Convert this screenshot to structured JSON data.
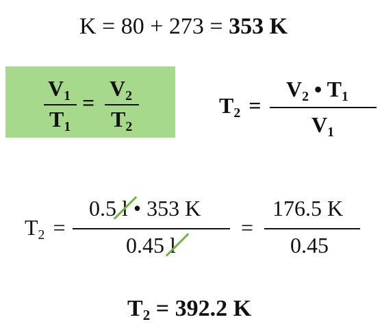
{
  "line1": {
    "left": "K = 80 + 273 = ",
    "result": "353 K"
  },
  "boxed_law": {
    "box_color": "#a7d98c",
    "num_var": "V",
    "num_sub": "1",
    "den_var": "T",
    "den_sub": "1",
    "equals": "=",
    "num2_var": "V",
    "num2_sub": "2",
    "den2_var": "T",
    "den2_sub": "2"
  },
  "solved": {
    "lhs_var": "T",
    "lhs_sub": "2",
    "equals": "=",
    "num_a_var": "V",
    "num_a_sub": "2",
    "dot": " • ",
    "num_b_var": "T",
    "num_b_sub": "1",
    "den_var": "V",
    "den_sub": "1"
  },
  "substitution": {
    "lhs_var": "T",
    "lhs_sub": "2",
    "equals": "=",
    "num_pre": "0.5 ",
    "num_cancel": "l",
    "num_post": " • 353 K",
    "den_pre": "0.45 ",
    "den_cancel": "l",
    "equals2": "=",
    "num2": "176.5 K",
    "den2": "0.45",
    "strike_color": "#6cb63f"
  },
  "final": {
    "var": "T",
    "sub": "2",
    "rest": " = 392.2 K"
  }
}
